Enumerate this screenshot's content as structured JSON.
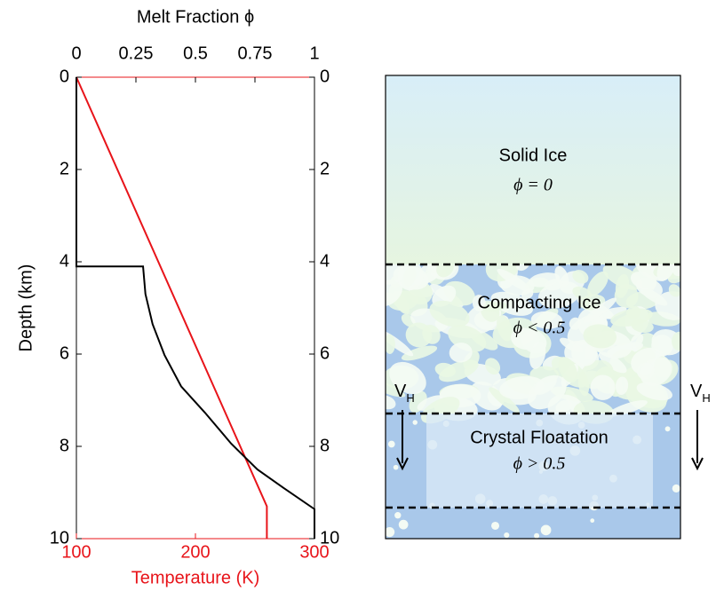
{
  "chart_data": {
    "type": "line",
    "x2label": "Melt Fraction ϕ",
    "ylabel": "Depth (km)",
    "xlabel": "Temperature (K)",
    "xlim": [
      100,
      300
    ],
    "xticks": [
      100,
      200,
      300
    ],
    "xcolor": "#e8141a",
    "x2lim": [
      0,
      1
    ],
    "x2ticks": [
      0,
      0.25,
      0.5,
      0.75,
      1
    ],
    "ylim": [
      0,
      10
    ],
    "yticks": [
      0,
      2,
      4,
      6,
      8,
      10
    ],
    "y_inverted": true,
    "series": [
      {
        "color": "#e8141a",
        "axis": "x",
        "x": [
          100,
          260,
          260
        ],
        "y": [
          0,
          9.3,
          10
        ]
      },
      {
        "color": "#000000",
        "axis": "x2",
        "x": [
          0,
          0,
          0.28,
          0.29,
          0.32,
          0.37,
          0.44,
          0.54,
          0.65,
          0.76,
          0.87,
          1,
          1
        ],
        "y": [
          0,
          4.1,
          4.1,
          4.7,
          5.35,
          6.02,
          6.7,
          7.27,
          7.94,
          8.5,
          8.9,
          9.36,
          10
        ]
      }
    ]
  },
  "diagram": {
    "layers": [
      {
        "name": "Solid Ice",
        "phase": "ϕ = 0"
      },
      {
        "name": "Compacting Ice",
        "phase": "ϕ < 0.5"
      },
      {
        "name": "Crystal Floatation",
        "phase": "ϕ > 0.5"
      }
    ],
    "velocity_labels": [
      {
        "text": "V",
        "sub": "H"
      },
      {
        "text": "V",
        "sub": "H"
      }
    ]
  }
}
